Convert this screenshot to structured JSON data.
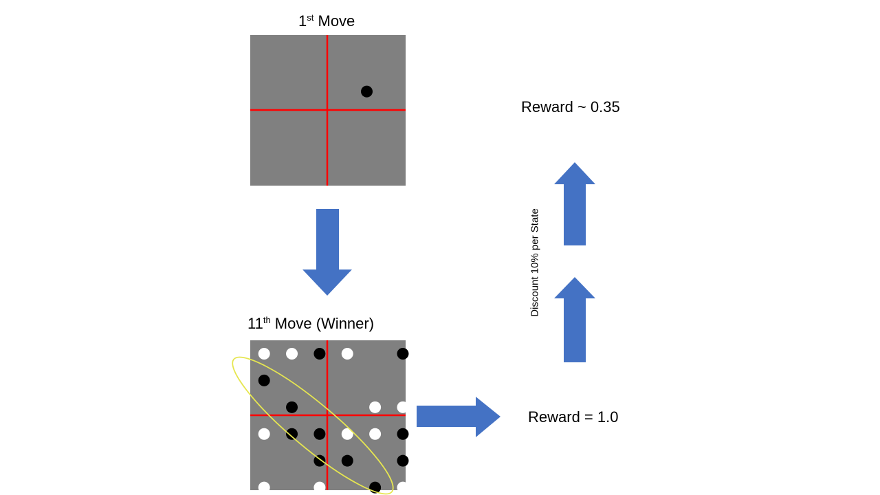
{
  "first_board": {
    "title_prefix": "1",
    "title_sup": "st",
    "title_suffix": " Move",
    "stones": [
      {
        "col": 4,
        "row": 1,
        "color": "black"
      }
    ]
  },
  "final_board": {
    "title_prefix": "11",
    "title_sup": "th",
    "title_suffix": " Move (Winner)",
    "stones": [
      {
        "col": 0,
        "row": 0,
        "color": "white"
      },
      {
        "col": 1,
        "row": 0,
        "color": "white"
      },
      {
        "col": 2,
        "row": 0,
        "color": "black"
      },
      {
        "col": 3,
        "row": 0,
        "color": "white"
      },
      {
        "col": 5,
        "row": 0,
        "color": "black"
      },
      {
        "col": 0,
        "row": 1,
        "color": "black"
      },
      {
        "col": 1,
        "row": 2,
        "color": "black"
      },
      {
        "col": 4,
        "row": 2,
        "color": "white"
      },
      {
        "col": 5,
        "row": 2,
        "color": "white"
      },
      {
        "col": 0,
        "row": 3,
        "color": "white"
      },
      {
        "col": 1,
        "row": 3,
        "color": "black"
      },
      {
        "col": 2,
        "row": 3,
        "color": "black"
      },
      {
        "col": 3,
        "row": 3,
        "color": "white"
      },
      {
        "col": 4,
        "row": 3,
        "color": "white"
      },
      {
        "col": 5,
        "row": 3,
        "color": "black"
      },
      {
        "col": 2,
        "row": 4,
        "color": "black"
      },
      {
        "col": 3,
        "row": 4,
        "color": "black"
      },
      {
        "col": 5,
        "row": 4,
        "color": "black"
      },
      {
        "col": 0,
        "row": 5,
        "color": "white"
      },
      {
        "col": 2,
        "row": 5,
        "color": "white"
      },
      {
        "col": 4,
        "row": 5,
        "color": "black"
      },
      {
        "col": 5,
        "row": 5,
        "color": "white"
      }
    ]
  },
  "reward_start": "Reward ~ 0.35",
  "reward_end": "Reward = 1.0",
  "discount_label": "Discount 10% per State",
  "colors": {
    "board": "#808080",
    "divider": "#ff0000",
    "arrow": "#4472c4",
    "highlight": "#e6e650",
    "stone_black": "#000000",
    "stone_white": "#ffffff"
  }
}
